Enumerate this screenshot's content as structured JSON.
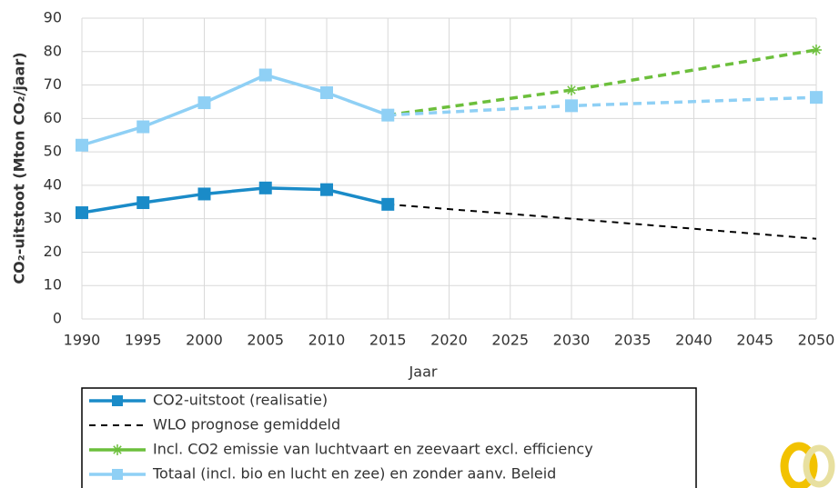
{
  "chart_data": {
    "type": "line",
    "x_label": "Jaar",
    "y_label": "CO₂-uitstoot (Mton CO₂/jaar)",
    "x": [
      1990,
      1995,
      2000,
      2005,
      2010,
      2015,
      2030,
      2050
    ],
    "xlim": [
      1990,
      2050
    ],
    "xticks": [
      1990,
      1995,
      2000,
      2005,
      2010,
      2015,
      2020,
      2025,
      2030,
      2035,
      2040,
      2045,
      2050
    ],
    "ylim": [
      0,
      90
    ],
    "yticks": [
      0,
      10,
      20,
      30,
      40,
      50,
      60,
      70,
      80,
      90
    ],
    "grid": true,
    "legend": "bottom",
    "series": [
      {
        "name": "CO2-uitstoot (realisatie)",
        "color": "#1a8bc8",
        "marker": "square",
        "values": [
          31.8,
          34.8,
          37.4,
          39.2,
          38.7,
          34.3,
          null,
          null
        ]
      },
      {
        "name": "WLO prognose gemiddeld",
        "color": "#000000",
        "marker": "none",
        "dash_from": 2015,
        "values": [
          null,
          null,
          null,
          null,
          null,
          34.3,
          30,
          24
        ]
      },
      {
        "name": "Incl. CO2 emissie van luchtvaart en zeevaart excl. efficiency",
        "color": "#6cbf3c",
        "marker": "star",
        "dash_from": 2015,
        "values": [
          null,
          null,
          null,
          null,
          null,
          61,
          68.5,
          80.5
        ]
      },
      {
        "name": "Totaal (incl. bio en lucht en zee) en zonder aanv. Beleid",
        "color": "#8fd0f5",
        "marker": "square",
        "dash_from": 2015,
        "values": [
          52,
          57.5,
          64.7,
          73,
          67.7,
          61,
          63.8,
          66.3
        ]
      }
    ]
  }
}
